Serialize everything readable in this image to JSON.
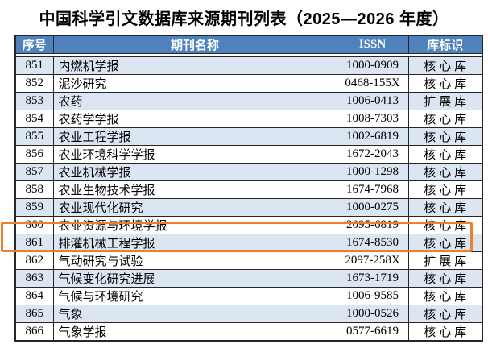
{
  "title": "中国科学引文数据库来源期刊列表（2025—2026 年度）",
  "table": {
    "columns": [
      "序号",
      "期刊名称",
      "ISSN",
      "库标识"
    ],
    "rows": [
      {
        "no": "851",
        "name": "内燃机学报",
        "issn": "1000-0909",
        "db": "核心库"
      },
      {
        "no": "852",
        "name": "泥沙研究",
        "issn": "0468-155X",
        "db": "核心库"
      },
      {
        "no": "853",
        "name": "农药",
        "issn": "1006-0413",
        "db": "扩展库"
      },
      {
        "no": "854",
        "name": "农药学学报",
        "issn": "1008-7303",
        "db": "核心库"
      },
      {
        "no": "855",
        "name": "农业工程学报",
        "issn": "1002-6819",
        "db": "核心库"
      },
      {
        "no": "856",
        "name": "农业环境科学学报",
        "issn": "1672-2043",
        "db": "核心库"
      },
      {
        "no": "857",
        "name": "农业机械学报",
        "issn": "1000-1298",
        "db": "核心库"
      },
      {
        "no": "858",
        "name": "农业生物技术学报",
        "issn": "1674-7968",
        "db": "核心库"
      },
      {
        "no": "859",
        "name": "农业现代化研究",
        "issn": "1000-0275",
        "db": "核心库"
      },
      {
        "no": "860",
        "name": "农业资源与环境学报",
        "issn": "2095-6819",
        "db": "核心库"
      },
      {
        "no": "861",
        "name": "排灌机械工程学报",
        "issn": "1674-8530",
        "db": "核心库"
      },
      {
        "no": "862",
        "name": "气动研究与试验",
        "issn": "2097-258X",
        "db": "扩展库"
      },
      {
        "no": "863",
        "name": "气候变化研究进展",
        "issn": "1673-1719",
        "db": "核心库"
      },
      {
        "no": "864",
        "name": "气候与环境研究",
        "issn": "1006-9585",
        "db": "核心库"
      },
      {
        "no": "865",
        "name": "气象",
        "issn": "1000-0526",
        "db": "核心库"
      },
      {
        "no": "866",
        "name": "气象学报",
        "issn": "0577-6619",
        "db": "核心库"
      }
    ],
    "highlighted_no": "861"
  },
  "colors": {
    "header_bg": "#4F81BD",
    "banded_row_bg": "#DCE6F2",
    "grid_line": "#262626",
    "highlight_border": "#ED7D31",
    "header_text": "#FFFFFF",
    "body_text": "#000000"
  }
}
